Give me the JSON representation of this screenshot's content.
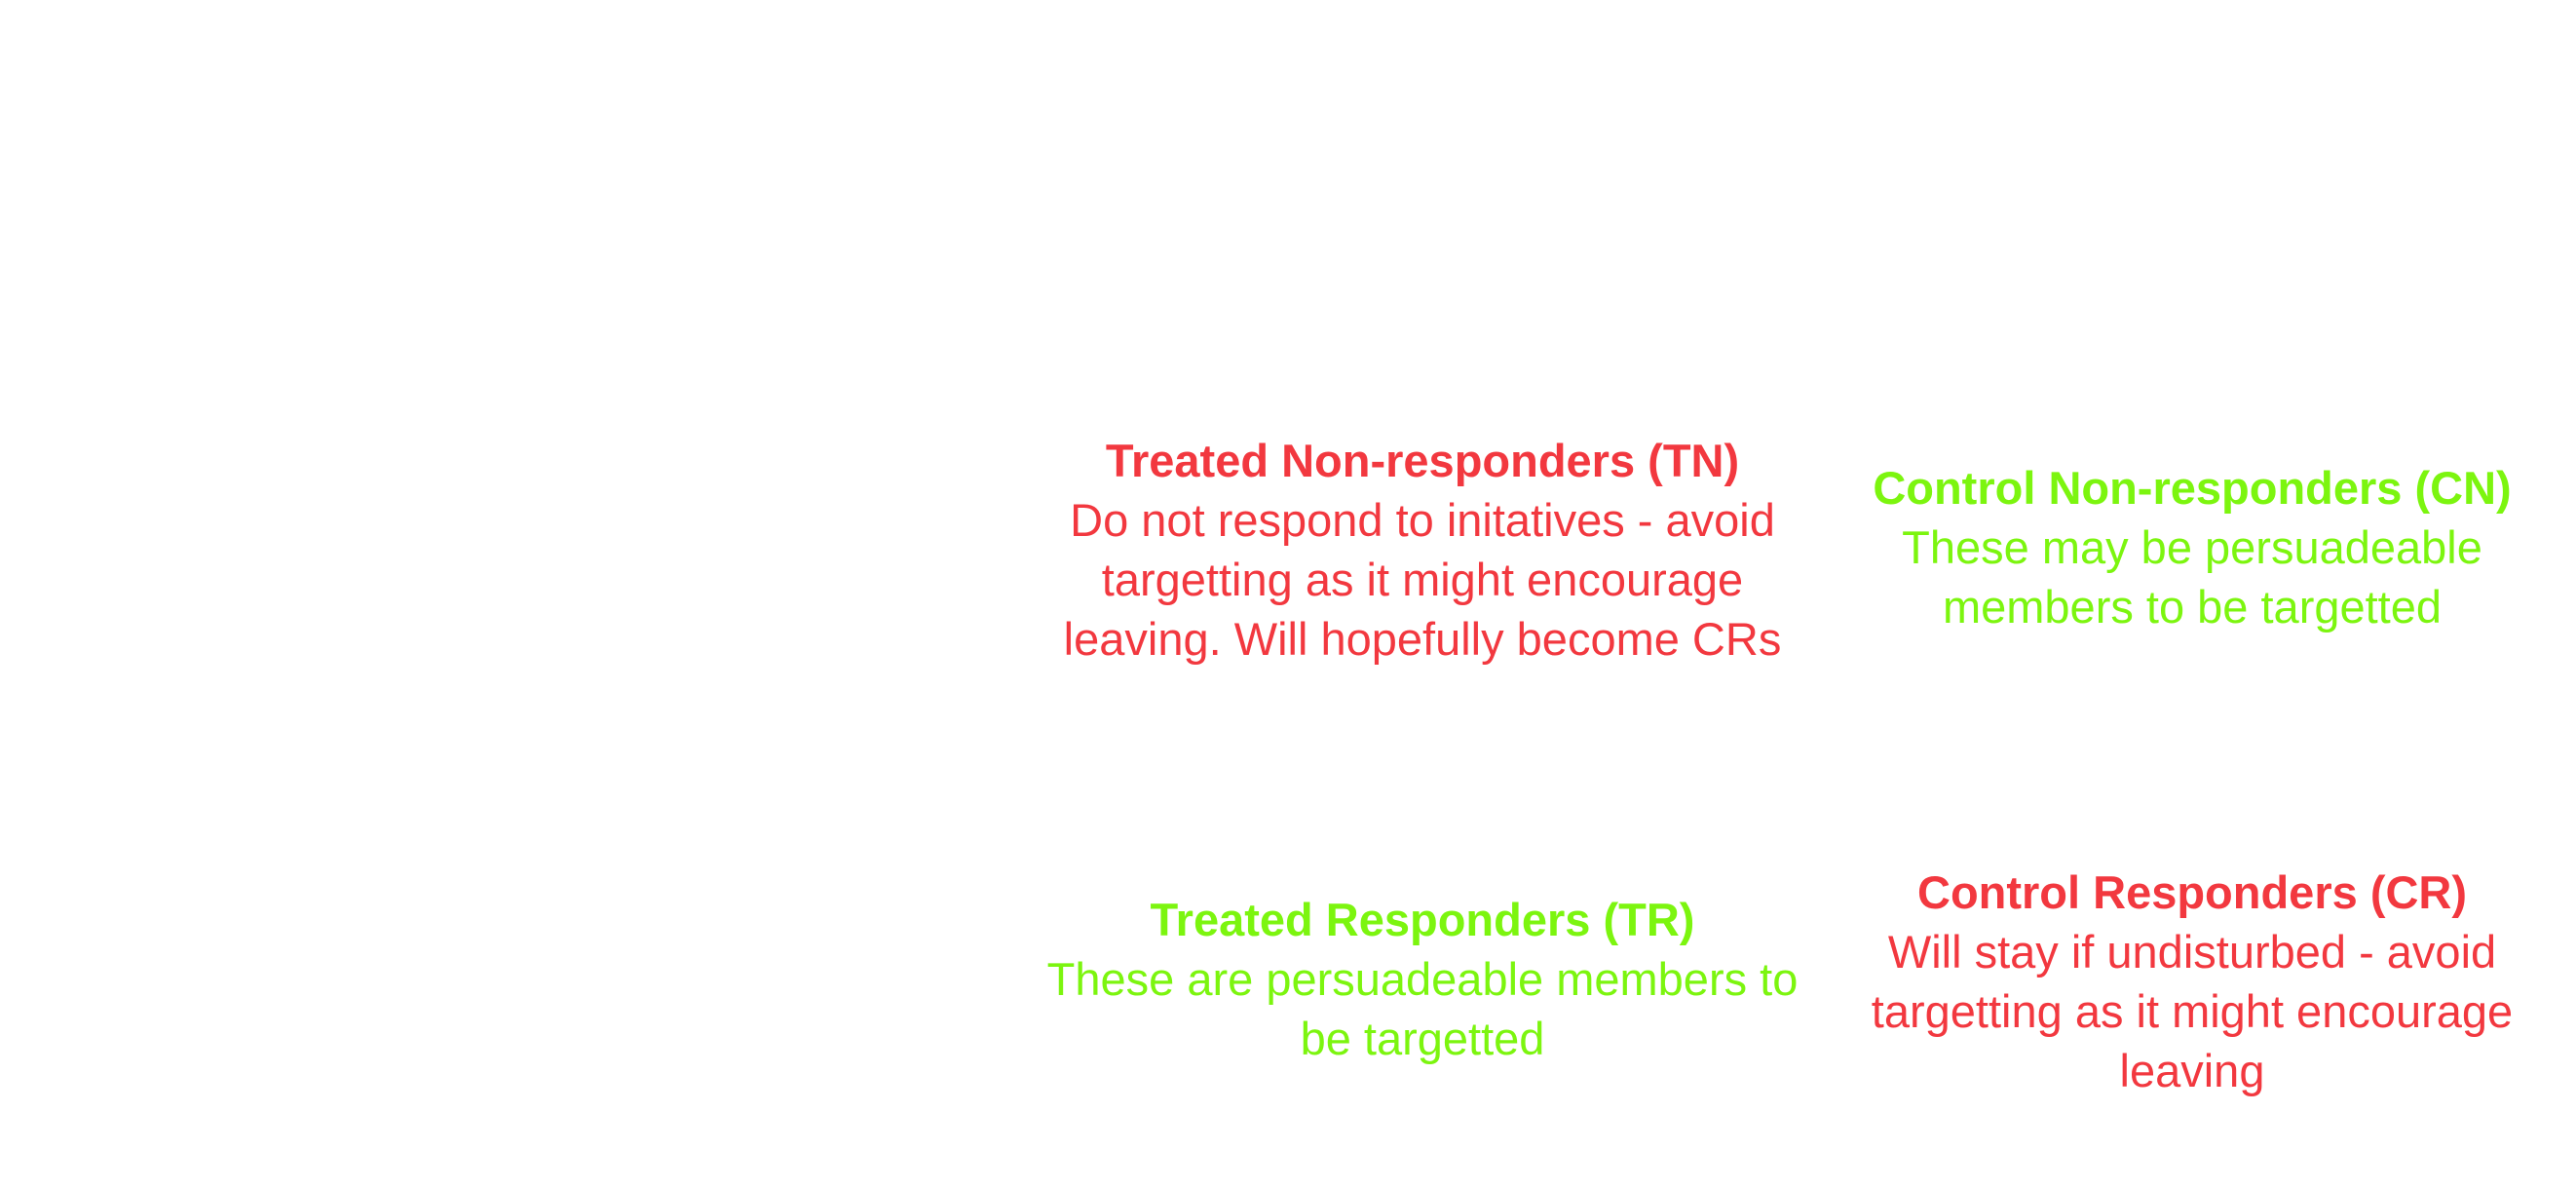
{
  "colors": {
    "negative": "#f2383f",
    "positive": "#7cf50f"
  },
  "quadrants": {
    "tn": {
      "title": "Treated Non-responders (TN)",
      "lines": [
        "Do not respond to initatives - avoid",
        "targetting as it might encourage",
        "leaving. Will hopefully become CRs"
      ],
      "color_key": "negative"
    },
    "cn": {
      "title": "Control Non-responders (CN)",
      "lines": [
        "These may be persuadeable",
        "members to be targetted"
      ],
      "color_key": "positive"
    },
    "tr": {
      "title": "Treated Responders (TR)",
      "lines": [
        "These are persuadeable members to",
        "be targetted"
      ],
      "color_key": "positive"
    },
    "cr": {
      "title": "Control Responders (CR)",
      "lines": [
        "Will stay if undisturbed - avoid",
        "targetting as it might encourage",
        "leaving"
      ],
      "color_key": "negative"
    }
  }
}
